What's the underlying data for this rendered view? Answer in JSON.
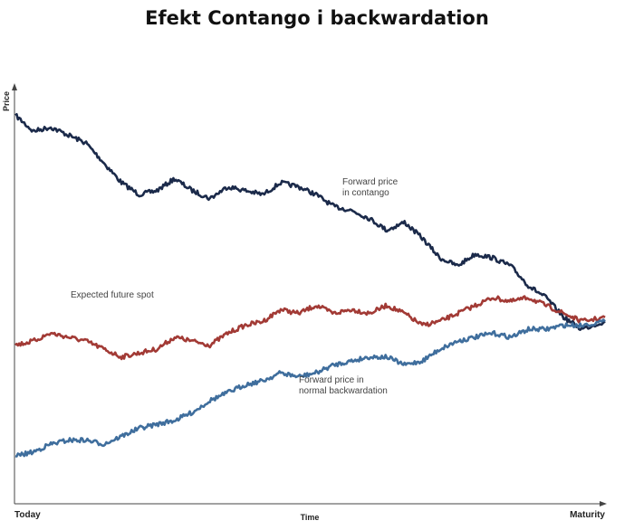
{
  "chart_data": {
    "type": "line",
    "title": "Efekt Contango i backwardation",
    "xlabel": "Time",
    "ylabel": "Price",
    "x_tick_labels": [
      "Today",
      "Maturity"
    ],
    "series": [
      {
        "name": "Forward price in contango",
        "color": "#1b2a4a",
        "x": [
          0,
          0.03,
          0.06,
          0.09,
          0.12,
          0.15,
          0.18,
          0.21,
          0.24,
          0.27,
          0.3,
          0.33,
          0.36,
          0.39,
          0.42,
          0.45,
          0.48,
          0.51,
          0.54,
          0.57,
          0.6,
          0.63,
          0.66,
          0.69,
          0.72,
          0.75,
          0.78,
          0.81,
          0.84,
          0.87,
          0.9,
          0.93,
          0.96,
          1.0
        ],
        "y": [
          0.96,
          0.92,
          0.93,
          0.91,
          0.89,
          0.84,
          0.79,
          0.76,
          0.77,
          0.8,
          0.77,
          0.75,
          0.78,
          0.77,
          0.76,
          0.79,
          0.78,
          0.76,
          0.73,
          0.72,
          0.7,
          0.67,
          0.69,
          0.65,
          0.6,
          0.58,
          0.61,
          0.6,
          0.58,
          0.53,
          0.5,
          0.45,
          0.42,
          0.44
        ]
      },
      {
        "name": "Expected future spot",
        "color": "#a23a35",
        "x": [
          0,
          0.03,
          0.06,
          0.09,
          0.12,
          0.15,
          0.18,
          0.21,
          0.24,
          0.27,
          0.3,
          0.33,
          0.36,
          0.39,
          0.42,
          0.45,
          0.48,
          0.51,
          0.54,
          0.57,
          0.6,
          0.63,
          0.66,
          0.69,
          0.72,
          0.75,
          0.78,
          0.81,
          0.84,
          0.87,
          0.9,
          0.93,
          0.96,
          1.0
        ],
        "y": [
          0.38,
          0.39,
          0.41,
          0.4,
          0.39,
          0.37,
          0.35,
          0.36,
          0.37,
          0.4,
          0.39,
          0.38,
          0.41,
          0.43,
          0.44,
          0.47,
          0.46,
          0.48,
          0.46,
          0.47,
          0.46,
          0.48,
          0.46,
          0.43,
          0.44,
          0.46,
          0.48,
          0.5,
          0.49,
          0.5,
          0.48,
          0.46,
          0.44,
          0.45
        ]
      },
      {
        "name": "Forward price in normal backwardation",
        "color": "#3f6e9d",
        "x": [
          0,
          0.03,
          0.06,
          0.09,
          0.12,
          0.15,
          0.18,
          0.21,
          0.24,
          0.27,
          0.3,
          0.33,
          0.36,
          0.39,
          0.42,
          0.45,
          0.48,
          0.51,
          0.54,
          0.57,
          0.6,
          0.63,
          0.66,
          0.69,
          0.72,
          0.75,
          0.78,
          0.81,
          0.84,
          0.87,
          0.9,
          0.93,
          0.96,
          1.0
        ],
        "y": [
          0.1,
          0.11,
          0.13,
          0.14,
          0.14,
          0.13,
          0.15,
          0.17,
          0.18,
          0.19,
          0.21,
          0.24,
          0.26,
          0.28,
          0.29,
          0.31,
          0.3,
          0.31,
          0.33,
          0.34,
          0.35,
          0.35,
          0.33,
          0.34,
          0.37,
          0.39,
          0.4,
          0.41,
          0.4,
          0.42,
          0.42,
          0.43,
          0.43,
          0.44
        ]
      }
    ],
    "annotations": [
      {
        "lines": [
          "Forward price",
          "in contango"
        ],
        "series": 0
      },
      {
        "lines": [
          "Expected future spot"
        ],
        "series": 1
      },
      {
        "lines": [
          "Forward price in",
          "normal backwardation"
        ],
        "series": 2
      }
    ],
    "xlim": [
      0,
      1
    ],
    "ylim": [
      0,
      1
    ],
    "grid": false,
    "legend": "none"
  }
}
